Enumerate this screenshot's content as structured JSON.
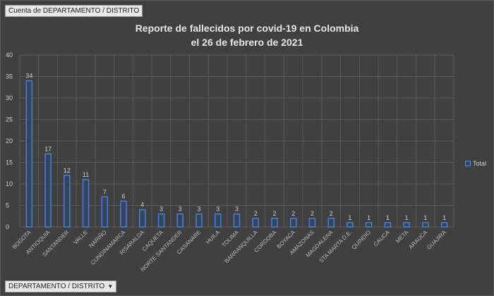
{
  "pivot": {
    "value_field_label": "Cuenta de DEPARTAMENTO / DISTRITO",
    "axis_field_label": "DEPARTAMENTO / DISTRITO",
    "axis_field_arrow": "▼"
  },
  "legend": {
    "label": "Total",
    "color": "#4a7fd0"
  },
  "colors": {
    "background": "#404040",
    "bar_border": "#4a7fd0",
    "bar_fill": "#33445f",
    "grid": "#5a5a5a",
    "text": "#d0d0d0"
  },
  "chart_data": {
    "type": "bar",
    "title": "Reporte de fallecidos por covid-19 en Colombia el 26 de febrero de 2021",
    "title_lines": [
      "Reporte de fallecidos por covid-19 en Colombia",
      "el 26 de febrero de 2021"
    ],
    "xlabel": "DEPARTAMENTO / DISTRITO",
    "ylabel": "",
    "ylim": [
      0,
      40
    ],
    "yticks": [
      0,
      5,
      10,
      15,
      20,
      25,
      30,
      35,
      40
    ],
    "grid": true,
    "legend_position": "right",
    "categories": [
      "BOGOTA",
      "ANTIOQUIA",
      "SANTANDER",
      "VALLE",
      "NARIÑO",
      "CUNDINAMARCA",
      "RISARALDA",
      "CAQUETA",
      "NORTE SANTANDER",
      "CASANARE",
      "HUILA",
      "TOLIMA",
      "BARRANQUILLA",
      "CORDOBA",
      "BOYACA",
      "AMAZONAS",
      "MAGDALENA",
      "STA MARTA D.E.",
      "QUINDIO",
      "CAUCA",
      "META",
      "ARAUCA",
      "GUAJIRA"
    ],
    "series": [
      {
        "name": "Total",
        "values": [
          34,
          17,
          12,
          11,
          7,
          6,
          4,
          3,
          3,
          3,
          3,
          3,
          2,
          2,
          2,
          2,
          2,
          1,
          1,
          1,
          1,
          1,
          1
        ]
      }
    ]
  }
}
